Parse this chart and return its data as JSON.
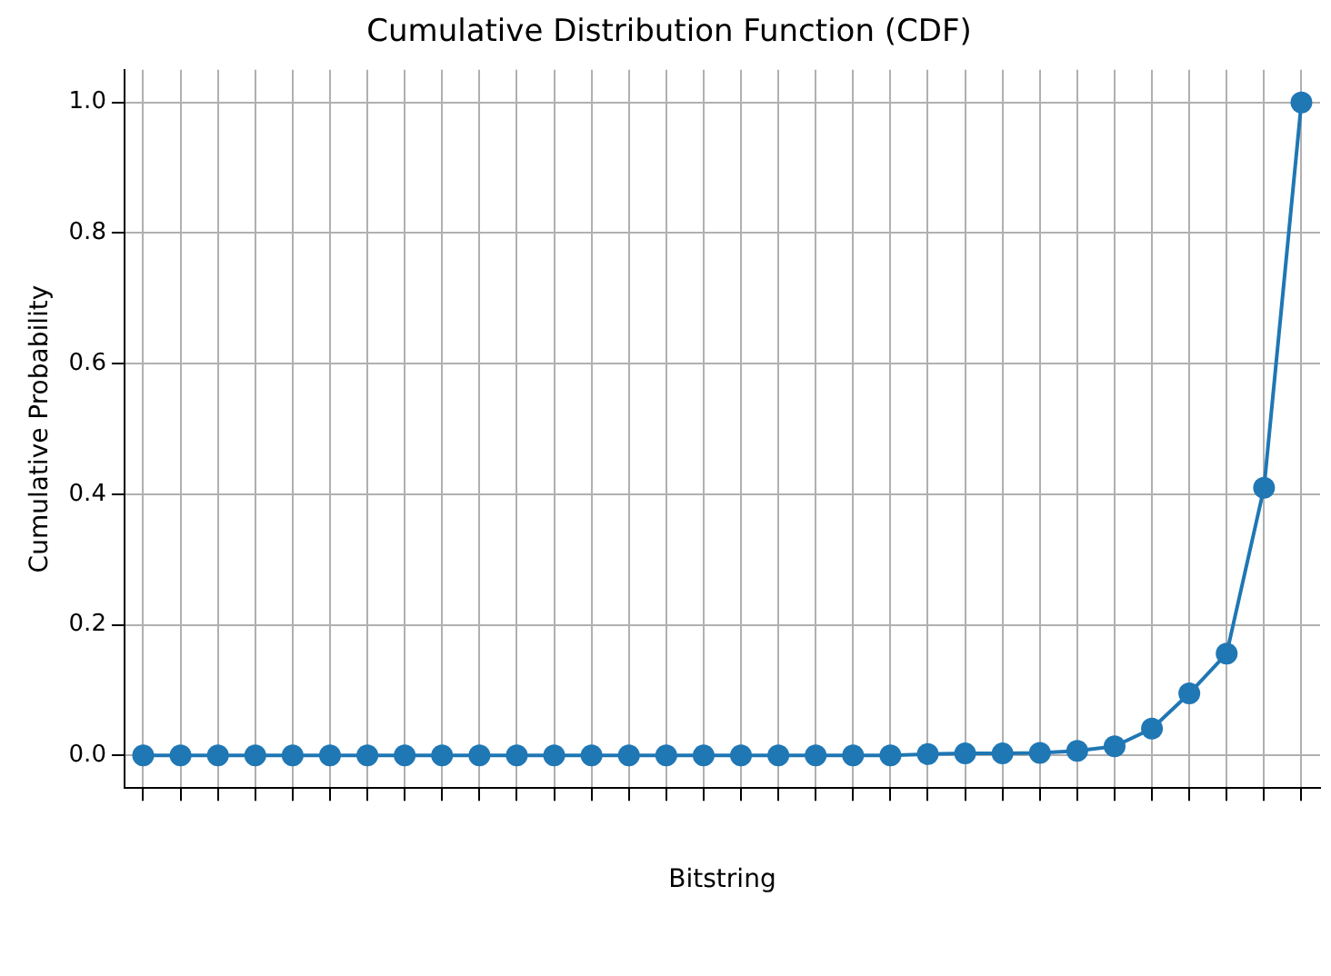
{
  "chart_data": {
    "type": "line",
    "title": "Cumulative Distribution Function (CDF)",
    "xlabel": "Bitstring",
    "ylabel": "Cumulative Probability",
    "categories": [
      null,
      null,
      null,
      null,
      null,
      null,
      null,
      null,
      null,
      null,
      null,
      null,
      null,
      null,
      null,
      null,
      null,
      null,
      null,
      null,
      null,
      null,
      null,
      null,
      null,
      null,
      null,
      null,
      null,
      null,
      null,
      null
    ],
    "series": [
      {
        "color": "#1f77b4",
        "values": [
          0,
          0,
          0,
          0,
          0,
          0,
          0,
          0,
          0,
          0,
          0,
          0,
          0,
          0,
          0,
          0,
          0,
          0,
          0,
          0,
          0,
          0.002,
          0.003,
          0.003,
          0.004,
          0.007,
          0.014,
          0.041,
          0.095,
          0.156,
          0.41,
          1.0
        ]
      }
    ],
    "ylim": [
      -0.05,
      1.05
    ],
    "yticks": [
      {
        "value": 0,
        "label": "0.0"
      },
      {
        "value": 0.2,
        "label": "0.2"
      },
      {
        "value": 0.4,
        "label": "0.4"
      },
      {
        "value": 0.6,
        "label": "0.6"
      },
      {
        "value": 0.8,
        "label": "0.8"
      },
      {
        "value": 1,
        "label": "1.0"
      }
    ],
    "grid": true,
    "tick_labels": "y",
    "marker": "circle",
    "line_style": "solid",
    "legend": false
  }
}
